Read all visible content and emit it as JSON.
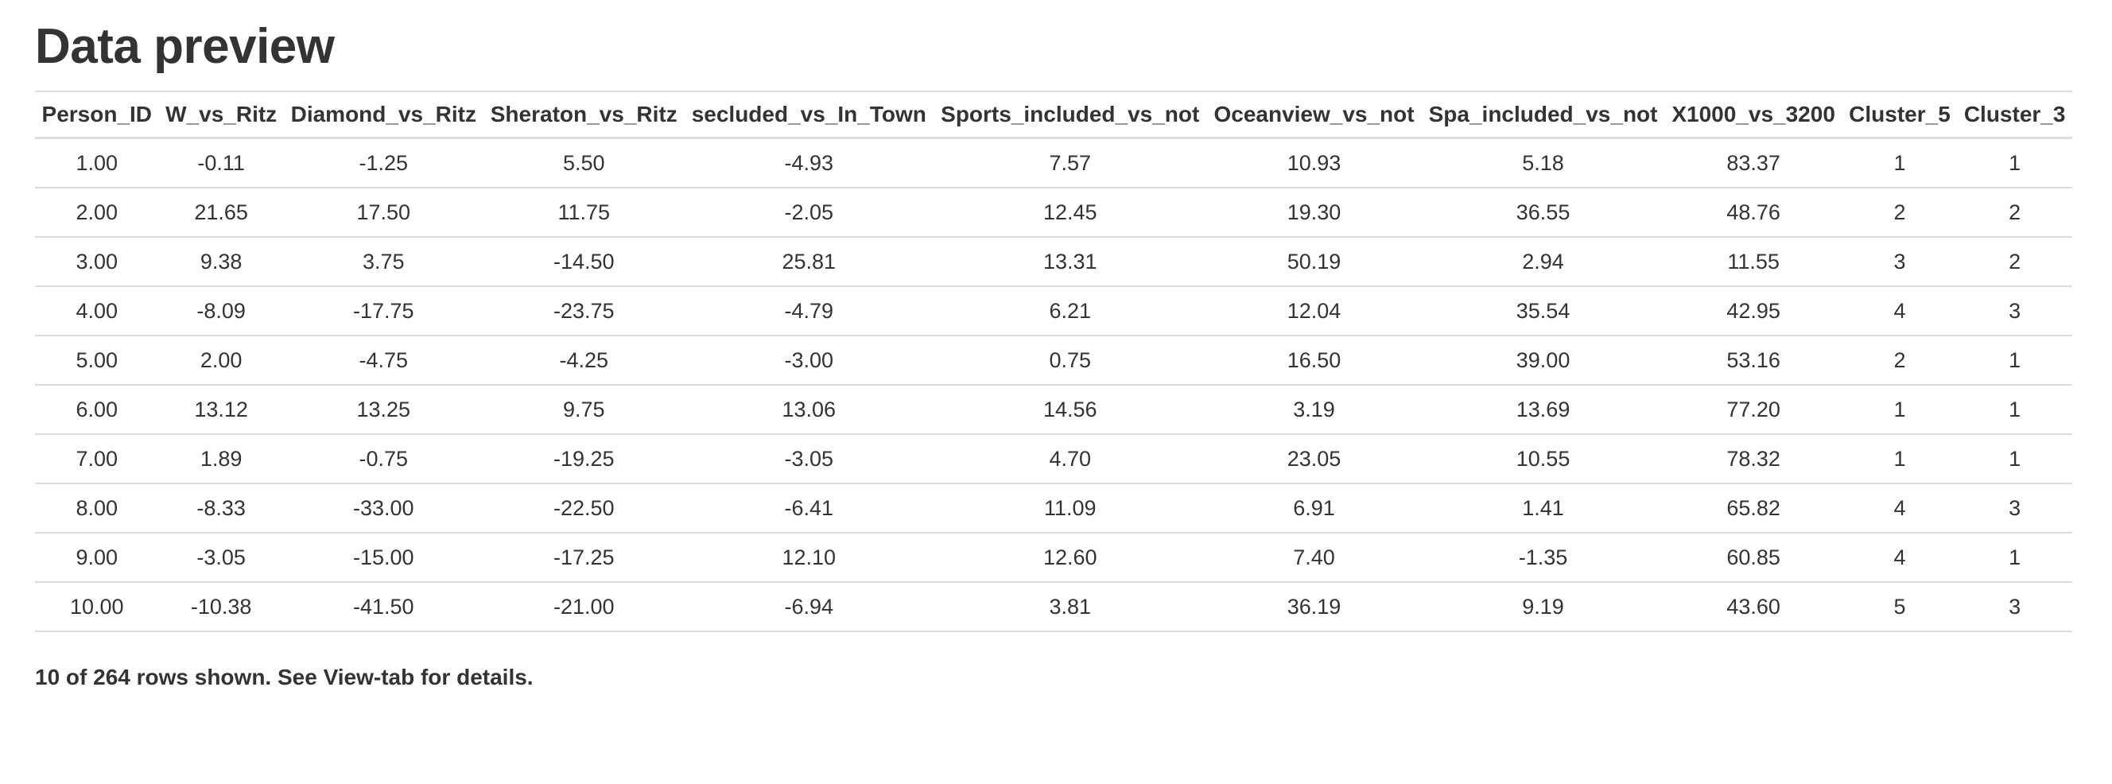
{
  "title": "Data preview",
  "table": {
    "columns": [
      "Person_ID",
      "W_vs_Ritz",
      "Diamond_vs_Ritz",
      "Sheraton_vs_Ritz",
      "secluded_vs_In_Town",
      "Sports_included_vs_not",
      "Oceanview_vs_not",
      "Spa_included_vs_not",
      "X1000_vs_3200",
      "Cluster_5",
      "Cluster_3"
    ],
    "rows": [
      [
        "1.00",
        "-0.11",
        "-1.25",
        "5.50",
        "-4.93",
        "7.57",
        "10.93",
        "5.18",
        "83.37",
        "1",
        "1"
      ],
      [
        "2.00",
        "21.65",
        "17.50",
        "11.75",
        "-2.05",
        "12.45",
        "19.30",
        "36.55",
        "48.76",
        "2",
        "2"
      ],
      [
        "3.00",
        "9.38",
        "3.75",
        "-14.50",
        "25.81",
        "13.31",
        "50.19",
        "2.94",
        "11.55",
        "3",
        "2"
      ],
      [
        "4.00",
        "-8.09",
        "-17.75",
        "-23.75",
        "-4.79",
        "6.21",
        "12.04",
        "35.54",
        "42.95",
        "4",
        "3"
      ],
      [
        "5.00",
        "2.00",
        "-4.75",
        "-4.25",
        "-3.00",
        "0.75",
        "16.50",
        "39.00",
        "53.16",
        "2",
        "1"
      ],
      [
        "6.00",
        "13.12",
        "13.25",
        "9.75",
        "13.06",
        "14.56",
        "3.19",
        "13.69",
        "77.20",
        "1",
        "1"
      ],
      [
        "7.00",
        "1.89",
        "-0.75",
        "-19.25",
        "-3.05",
        "4.70",
        "23.05",
        "10.55",
        "78.32",
        "1",
        "1"
      ],
      [
        "8.00",
        "-8.33",
        "-33.00",
        "-22.50",
        "-6.41",
        "11.09",
        "6.91",
        "1.41",
        "65.82",
        "4",
        "3"
      ],
      [
        "9.00",
        "-3.05",
        "-15.00",
        "-17.25",
        "12.10",
        "12.60",
        "7.40",
        "-1.35",
        "60.85",
        "4",
        "1"
      ],
      [
        "10.00",
        "-10.38",
        "-41.50",
        "-21.00",
        "-6.94",
        "3.81",
        "36.19",
        "9.19",
        "43.60",
        "5",
        "3"
      ]
    ]
  },
  "footer": "10 of 264 rows shown. See View-tab for details.",
  "colors": {
    "text": "#333333",
    "border": "#dddddd",
    "background": "#ffffff"
  }
}
